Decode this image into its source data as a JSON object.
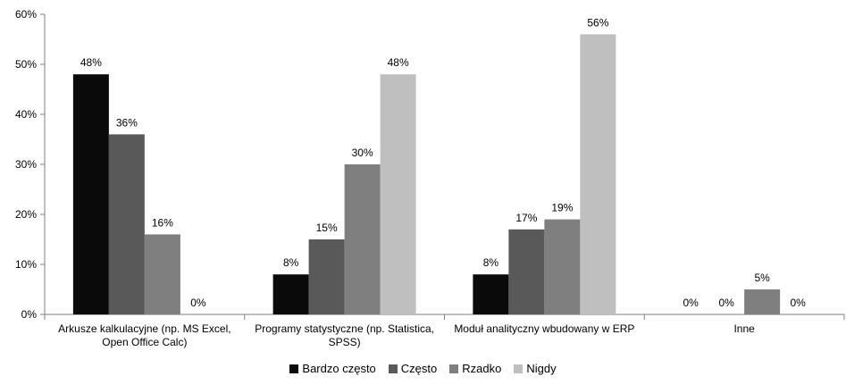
{
  "chart_data": {
    "type": "bar",
    "categories": [
      [
        "Arkusze kalkulacyjne (np. MS Excel,",
        "Open Office Calc)"
      ],
      [
        "Programy statystyczne (np. Statistica,",
        "SPSS)"
      ],
      [
        "Moduł analityczny wbudowany w ERP"
      ],
      [
        "Inne"
      ]
    ],
    "series": [
      {
        "name": "Bardzo często",
        "color": "#0a0a0a",
        "values": [
          48,
          8,
          8,
          0
        ],
        "labels": [
          "48%",
          "8%",
          "8%",
          "0%"
        ]
      },
      {
        "name": "Często",
        "color": "#595959",
        "values": [
          36,
          15,
          17,
          0
        ],
        "labels": [
          "36%",
          "15%",
          "17%",
          "0%"
        ]
      },
      {
        "name": "Rzadko",
        "color": "#7f7f7f",
        "values": [
          16,
          30,
          19,
          5
        ],
        "labels": [
          "16%",
          "30%",
          "19%",
          "5%"
        ]
      },
      {
        "name": "Nigdy",
        "color": "#bfbfbf",
        "values": [
          0,
          48,
          56,
          0
        ],
        "labels": [
          "0%",
          "48%",
          "56%",
          "0%"
        ]
      }
    ],
    "yticks": [
      "0%",
      "10%",
      "20%",
      "30%",
      "40%",
      "50%",
      "60%"
    ],
    "ylim": [
      0,
      60
    ],
    "grid": false,
    "legend_position": "bottom"
  }
}
